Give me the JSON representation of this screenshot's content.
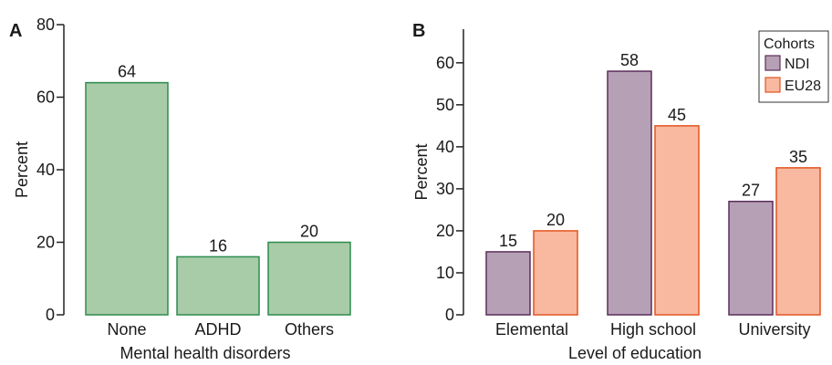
{
  "chart_data": [
    {
      "panel_label": "A",
      "type": "bar",
      "categories": [
        "None",
        "ADHD",
        "Others"
      ],
      "values": [
        64,
        16,
        20
      ],
      "data_labels": [
        "64",
        "16",
        "20"
      ],
      "xlabel": "Mental health disorders",
      "ylabel": "Percent",
      "ylim": [
        0,
        80
      ],
      "yticks": [
        0,
        20,
        40,
        60,
        80
      ],
      "grid": false,
      "colors": {
        "fill": "#a8cba8",
        "stroke": "#2e8b4e"
      }
    },
    {
      "panel_label": "B",
      "type": "bar",
      "categories": [
        "Elemental",
        "High school",
        "University"
      ],
      "series": [
        {
          "name": "NDI",
          "values": [
            15,
            58,
            27
          ],
          "data_labels": [
            "15",
            "58",
            "27"
          ],
          "fill": "#b6a0b6",
          "stroke": "#5a2e5a"
        },
        {
          "name": "EU28",
          "values": [
            20,
            45,
            35
          ],
          "data_labels": [
            "20",
            "45",
            "35"
          ],
          "fill": "#f8b9a0",
          "stroke": "#e2541f"
        }
      ],
      "xlabel": "Level of education",
      "ylabel": "Percent",
      "ylim": [
        0,
        68
      ],
      "yticks": [
        0,
        10,
        20,
        30,
        40,
        50,
        60
      ],
      "grid": false,
      "legend": {
        "title": "Cohorts",
        "placement": "top-right"
      }
    }
  ]
}
